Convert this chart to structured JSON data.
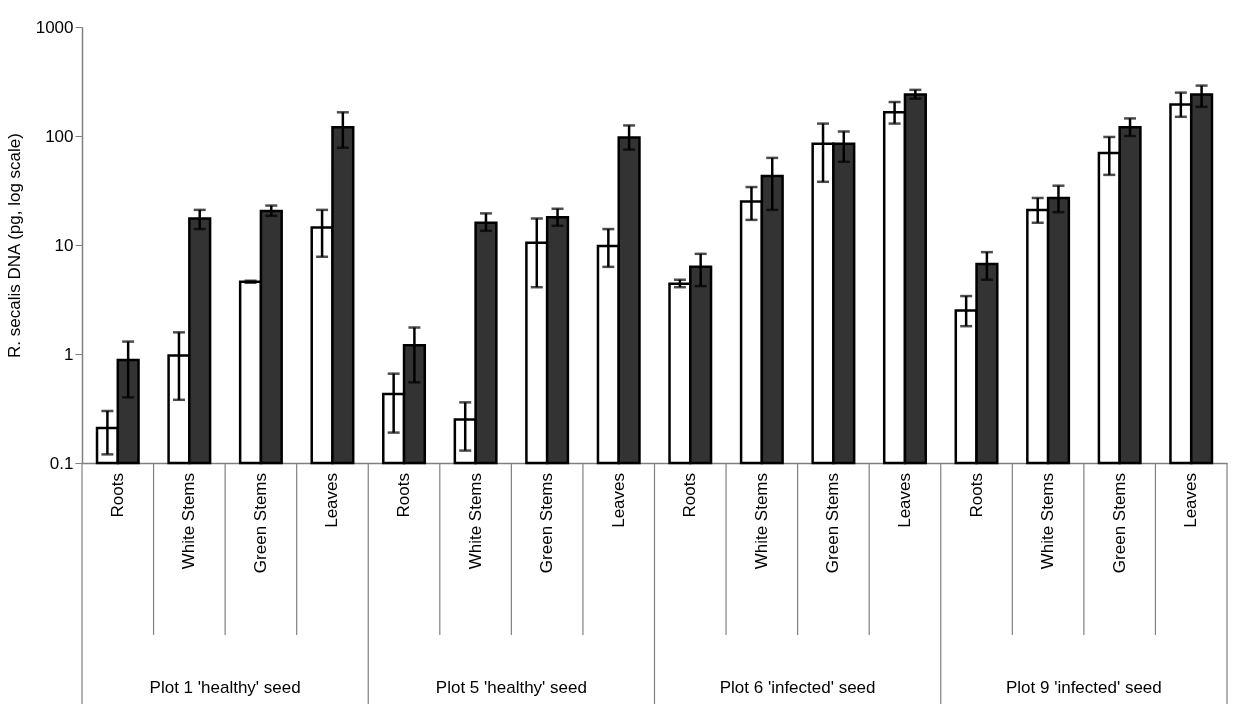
{
  "chart_data": {
    "type": "bar",
    "ylabel": "R. secalis DNA (pg, log scale)",
    "categories": [
      "Roots",
      "White Stems",
      "Green Stems",
      "Leaves",
      "Roots",
      "White Stems",
      "Green Stems",
      "Leaves",
      "Roots",
      "White Stems",
      "Green Stems",
      "Leaves",
      "Roots",
      "White Stems",
      "Green Stems",
      "Leaves"
    ],
    "annotations": [
      "Plot 1 'healthy' seed",
      "Plot 5 'healthy' seed",
      "Plot 6 'infected' seed",
      "Plot 9 'infected' seed"
    ],
    "series": [
      {
        "color": "#ffffff",
        "values": [
          0.21,
          0.97,
          4.6,
          14.5,
          0.43,
          0.25,
          10.5,
          9.8,
          4.4,
          25,
          85,
          165,
          2.5,
          21,
          70,
          195
        ],
        "errors": [
          [
            0.12,
            0.3
          ],
          [
            0.38,
            1.58
          ],
          [
            4.5,
            4.7
          ],
          [
            7.8,
            21
          ],
          [
            0.19,
            0.66
          ],
          [
            0.13,
            0.36
          ],
          [
            4.1,
            17.5
          ],
          [
            6.3,
            14
          ],
          [
            4.1,
            4.8
          ],
          [
            17,
            34
          ],
          [
            38,
            130
          ],
          [
            130,
            205
          ],
          [
            1.8,
            3.4
          ],
          [
            16,
            27
          ],
          [
            44,
            98
          ],
          [
            150,
            250
          ]
        ]
      },
      {
        "color": "#333333",
        "values": [
          0.88,
          17.5,
          20.5,
          120,
          1.2,
          16,
          18,
          97,
          6.3,
          43,
          85,
          240,
          6.7,
          27,
          120,
          240
        ],
        "errors": [
          [
            0.4,
            1.3
          ],
          [
            14,
            21
          ],
          [
            18.5,
            23
          ],
          [
            78,
            165
          ],
          [
            0.55,
            1.75
          ],
          [
            13.5,
            19.5
          ],
          [
            15,
            21.5
          ],
          [
            75,
            125
          ],
          [
            4.2,
            8.3
          ],
          [
            21,
            63
          ],
          [
            58,
            110
          ],
          [
            220,
            265
          ],
          [
            4.8,
            8.6
          ],
          [
            20,
            35
          ],
          [
            100,
            145
          ],
          [
            185,
            290
          ]
        ]
      }
    ],
    "log": "y",
    "ylim": [
      0.1,
      1000
    ],
    "yticks": [
      0.1,
      1,
      10,
      100,
      1000
    ],
    "grid": false
  }
}
